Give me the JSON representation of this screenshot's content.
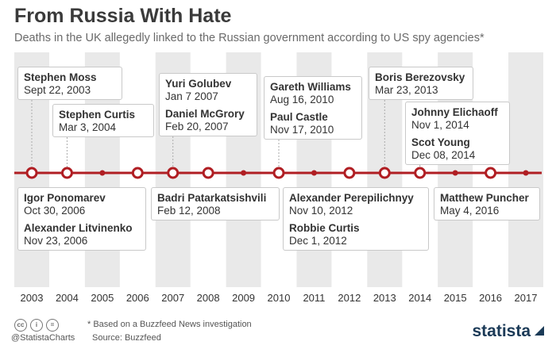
{
  "header": {
    "title": "From Russia With Hate",
    "subtitle": "Deaths in the UK allegedly linked to the Russian government according to US spy agencies*"
  },
  "chart_data": {
    "type": "timeline",
    "years": [
      "2003",
      "2004",
      "2005",
      "2006",
      "2007",
      "2008",
      "2009",
      "2010",
      "2011",
      "2012",
      "2013",
      "2014",
      "2015",
      "2016",
      "2017"
    ],
    "timeline_color": "#b01e23",
    "groups": [
      {
        "position": "above",
        "level": 1,
        "anchor_year": "2003",
        "entries": [
          {
            "name": "Stephen Moss",
            "date": "Sept 22, 2003"
          }
        ]
      },
      {
        "position": "above",
        "level": 2,
        "anchor_year": "2004",
        "entries": [
          {
            "name": "Stephen Curtis",
            "date": "Mar 3, 2004"
          }
        ]
      },
      {
        "position": "above",
        "level": 1,
        "anchor_year": "2007",
        "entries": [
          {
            "name": "Yuri Golubev",
            "date": "Jan 7 2007"
          },
          {
            "name": "Daniel McGrory",
            "date": "Feb 20, 2007"
          }
        ]
      },
      {
        "position": "above",
        "level": 1,
        "anchor_year": "2010",
        "entries": [
          {
            "name": "Gareth Williams",
            "date": "Aug 16, 2010"
          },
          {
            "name": "Paul Castle",
            "date": "Nov 17, 2010"
          }
        ]
      },
      {
        "position": "above",
        "level": 1,
        "anchor_year": "2013",
        "entries": [
          {
            "name": "Boris Berezovsky",
            "date": "Mar 23, 2013"
          }
        ]
      },
      {
        "position": "above",
        "level": 2,
        "anchor_year": "2014",
        "entries": [
          {
            "name": "Johnny Elichaoff",
            "date": "Nov 1, 2014"
          },
          {
            "name": "Scot Young",
            "date": "Dec 08, 2014"
          }
        ]
      },
      {
        "position": "below",
        "anchor_year": "2006",
        "entries": [
          {
            "name": "Igor Ponomarev",
            "date": "Oct 30, 2006"
          },
          {
            "name": "Alexander Litvinenko",
            "date": "Nov 23, 2006"
          }
        ]
      },
      {
        "position": "below",
        "anchor_year": "2008",
        "entries": [
          {
            "name": "Badri Patarkatsishvili",
            "date": "Feb 12, 2008"
          }
        ]
      },
      {
        "position": "below",
        "anchor_year": "2012",
        "entries": [
          {
            "name": "Alexander Perepilichnyy",
            "date": "Nov 10, 2012"
          },
          {
            "name": "Robbie Curtis",
            "date": "Dec 1, 2012"
          }
        ]
      },
      {
        "position": "below",
        "anchor_year": "2016",
        "entries": [
          {
            "name": "Matthew Puncher",
            "date": "May 4, 2016"
          }
        ]
      }
    ],
    "event_years": [
      "2003",
      "2004",
      "2006",
      "2007",
      "2008",
      "2010",
      "2012",
      "2013",
      "2014",
      "2016"
    ]
  },
  "footer": {
    "note": "* Based on a Buzzfeed News investigation",
    "source": "Source: Buzzfeed",
    "handle": "@StatistaCharts",
    "brand": "statista"
  }
}
